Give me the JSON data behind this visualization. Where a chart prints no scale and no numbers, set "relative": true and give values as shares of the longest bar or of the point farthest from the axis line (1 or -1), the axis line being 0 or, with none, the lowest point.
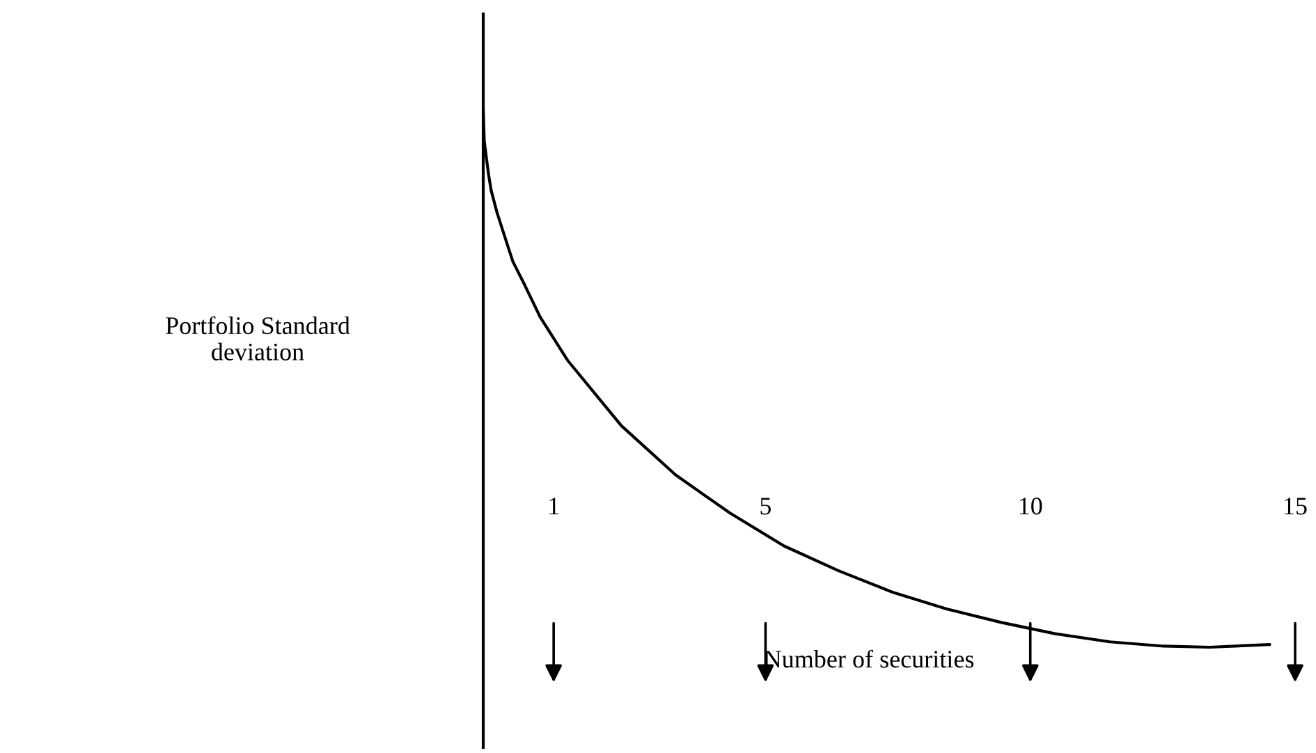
{
  "chart_data": {
    "type": "line",
    "relative": true,
    "xlabel": "Number of securities",
    "annotations": [
      "Portfolio Standard\ndeviation"
    ],
    "xlim": [
      -0.33,
      15
    ],
    "xticks": [
      1,
      5,
      10,
      15
    ],
    "series": [
      {
        "color": "#000000",
        "x": [
          -0.33,
          -0.31,
          -0.23,
          -0.18,
          -0.07,
          0.13,
          0.23,
          0.44,
          0.74,
          1.26,
          2.28,
          3.3,
          4.33,
          5.35,
          6.38,
          7.4,
          8.42,
          9.45,
          10.47,
          11.5,
          12.52,
          13.39,
          14.52
        ],
        "values": [
          1.0,
          0.939,
          0.878,
          0.848,
          0.807,
          0.746,
          0.716,
          0.675,
          0.614,
          0.533,
          0.411,
          0.32,
          0.249,
          0.188,
          0.142,
          0.102,
          0.071,
          0.046,
          0.025,
          0.01,
          0.002,
          0.0,
          0.005
        ]
      }
    ]
  }
}
